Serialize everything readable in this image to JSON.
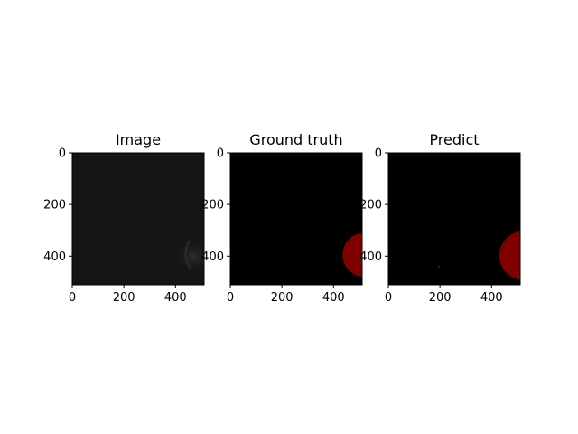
{
  "chart_data": [
    {
      "type": "image",
      "title": "Image",
      "xticks": [
        0,
        200,
        400
      ],
      "yticks": [
        0,
        200,
        400
      ],
      "xlim": [
        0,
        511
      ],
      "ylim": [
        511,
        0
      ],
      "content": "dark grayscale image with faint bright edge near (450, 400)",
      "colors": {
        "background": "#151515",
        "highlight": "#2c2c2c"
      }
    },
    {
      "type": "image",
      "title": "Ground truth",
      "xticks": [
        0,
        200,
        400
      ],
      "yticks": [
        0,
        200,
        400
      ],
      "xlim": [
        0,
        511
      ],
      "ylim": [
        511,
        0
      ],
      "content": "binary mask, red region",
      "mask_circle": {
        "cx": 520,
        "cy": 395,
        "r": 85
      },
      "colors": {
        "background": "#000000",
        "mask": "#800000"
      }
    },
    {
      "type": "image",
      "title": "Predict",
      "xticks": [
        0,
        200,
        400
      ],
      "yticks": [
        0,
        200,
        400
      ],
      "xlim": [
        0,
        511
      ],
      "ylim": [
        511,
        0
      ],
      "content": "binary mask, red region",
      "mask_circle": {
        "cx": 525,
        "cy": 398,
        "r": 95
      },
      "mask_dot": {
        "cx": 195,
        "cy": 440,
        "r": 3
      },
      "colors": {
        "background": "#000000",
        "mask": "#800000"
      }
    }
  ]
}
